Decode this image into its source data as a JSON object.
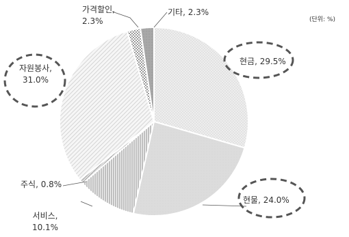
{
  "chart_data": {
    "type": "pie",
    "unit_label": "(단위: %)",
    "slices": [
      {
        "label": "현금",
        "value": 29.5,
        "display": "현금, 29.5%",
        "highlighted": true
      },
      {
        "label": "현물",
        "value": 24.0,
        "display": "현물, 24.0%",
        "highlighted": true
      },
      {
        "label": "서비스",
        "value": 10.1,
        "display_lines": [
          "서비스,",
          "10.1%"
        ],
        "highlighted": false
      },
      {
        "label": "주식",
        "value": 0.8,
        "display": "주식, 0.8%",
        "highlighted": false
      },
      {
        "label": "자원봉사",
        "value": 31.0,
        "display_lines": [
          "자원봉사,",
          "31.0%"
        ],
        "highlighted": true
      },
      {
        "label": "가격할인",
        "value": 2.3,
        "display_lines": [
          "가격할인,",
          "2.3%"
        ],
        "highlighted": false
      },
      {
        "label": "기타",
        "value": 2.3,
        "display": "기타, 2.3%",
        "highlighted": false
      }
    ],
    "legend": "none"
  }
}
